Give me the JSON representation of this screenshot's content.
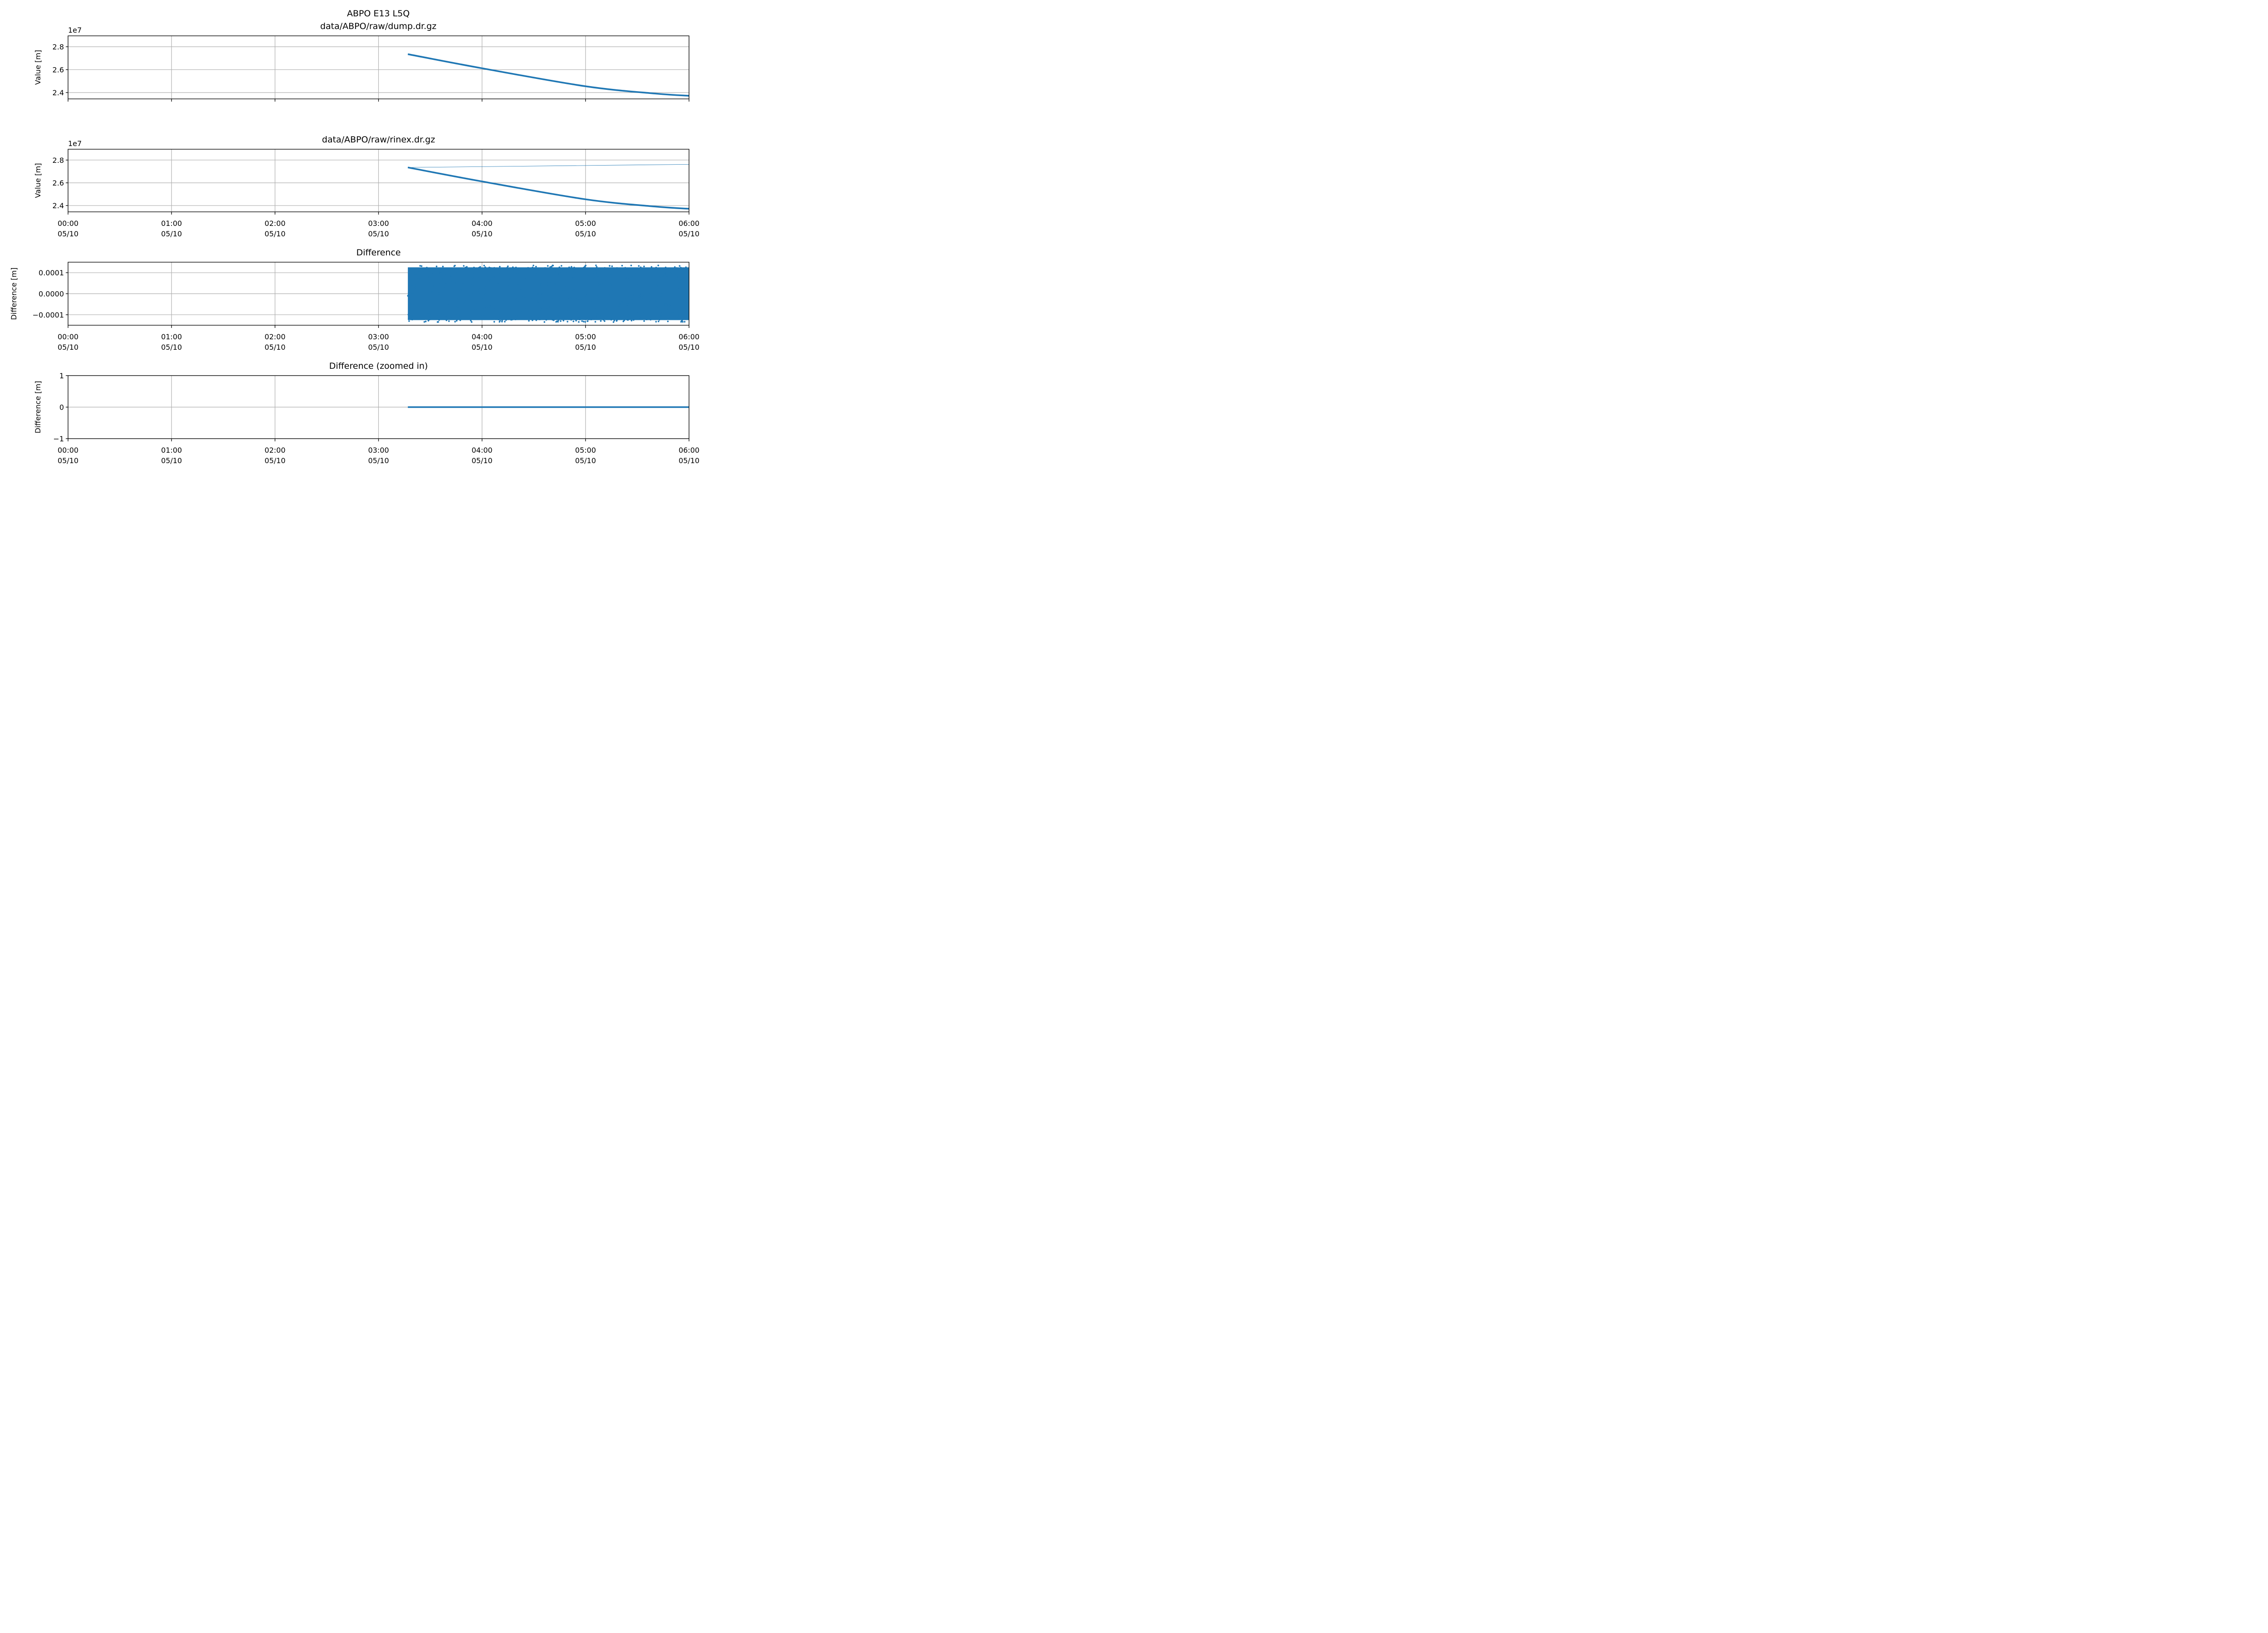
{
  "figure_title": {
    "line1": "ABPO E13 L5Q",
    "line2": "data/ABPO/raw/dump.dr.gz"
  },
  "colors": {
    "series": "#1f77b4",
    "grid": "#b0b0b0",
    "axes": "#000000"
  },
  "chart_data": [
    {
      "id": "dump",
      "type": "line",
      "title": "",
      "xlabel": "",
      "ylabel": "Value [m]",
      "offset_label": "1e7",
      "xlim": [
        "2023-05-10 00:00",
        "2023-05-10 06:00"
      ],
      "ylim": [
        2.345,
        2.895
      ],
      "yticks": [
        2.4,
        2.6,
        2.8
      ],
      "ytick_labels": [
        "2.4",
        "2.6",
        "2.8"
      ],
      "show_x_tick_labels": false,
      "grid": true,
      "series": [
        {
          "style": "thick",
          "x": [
            "2023-05-10 03:17",
            "2023-05-10 04:00",
            "2023-05-10 05:00",
            "2023-05-10 05:40",
            "2023-05-10 06:00"
          ],
          "values": [
            2.735,
            2.612,
            2.455,
            2.392,
            2.372
          ]
        }
      ]
    },
    {
      "id": "rinex",
      "type": "line",
      "title": "data/ABPO/raw/rinex.dr.gz",
      "xlabel": "",
      "ylabel": "Value [m]",
      "offset_label": "1e7",
      "xlim": [
        "2023-05-10 00:00",
        "2023-05-10 06:00"
      ],
      "ylim": [
        2.345,
        2.895
      ],
      "yticks": [
        2.4,
        2.6,
        2.8
      ],
      "ytick_labels": [
        "2.4",
        "2.6",
        "2.8"
      ],
      "show_x_tick_labels": true,
      "grid": true,
      "series": [
        {
          "style": "thick",
          "x": [
            "2023-05-10 03:17",
            "2023-05-10 04:00",
            "2023-05-10 05:00",
            "2023-05-10 05:40",
            "2023-05-10 06:00"
          ],
          "values": [
            2.735,
            2.612,
            2.455,
            2.392,
            2.372
          ]
        },
        {
          "style": "thin",
          "x": [
            "2023-05-10 03:17",
            "2023-05-10 06:00"
          ],
          "values": [
            2.735,
            2.762
          ]
        }
      ]
    },
    {
      "id": "difference",
      "type": "scatter",
      "title": "Difference",
      "xlabel": "",
      "ylabel": "Difference [m]",
      "offset_label": "",
      "xlim": [
        "2023-05-10 00:00",
        "2023-05-10 06:00"
      ],
      "ylim": [
        -0.00015,
        0.00015
      ],
      "yticks": [
        -0.0001,
        0.0,
        0.0001
      ],
      "ytick_labels": [
        "−0.0001",
        "0.0000",
        "0.0001"
      ],
      "show_x_tick_labels": true,
      "grid": true,
      "noise": {
        "x_start": "2023-05-10 03:17",
        "x_end": "2023-05-10 06:00",
        "amplitude": 0.000135
      }
    },
    {
      "id": "difference_zoomed",
      "type": "line",
      "title": "Difference (zoomed in)",
      "xlabel": "",
      "ylabel": "Difference [m]",
      "offset_label": "",
      "xlim": [
        "2023-05-10 00:00",
        "2023-05-10 06:00"
      ],
      "ylim": [
        -1,
        1
      ],
      "yticks": [
        -1,
        0,
        1
      ],
      "ytick_labels": [
        "−1",
        "0",
        "1"
      ],
      "show_x_tick_labels": true,
      "grid": true,
      "series": [
        {
          "style": "thick",
          "x": [
            "2023-05-10 03:17",
            "2023-05-10 06:00"
          ],
          "values": [
            0,
            0
          ]
        }
      ]
    }
  ],
  "x_axis": {
    "ticks": [
      "2023-05-10 00:00",
      "2023-05-10 01:00",
      "2023-05-10 02:00",
      "2023-05-10 03:00",
      "2023-05-10 04:00",
      "2023-05-10 05:00",
      "2023-05-10 06:00"
    ],
    "tick_labels_time": [
      "00:00",
      "01:00",
      "02:00",
      "03:00",
      "04:00",
      "05:00",
      "06:00"
    ],
    "tick_labels_date": [
      "05/10",
      "05/10",
      "05/10",
      "05/10",
      "05/10",
      "05/10",
      "05/10"
    ]
  }
}
